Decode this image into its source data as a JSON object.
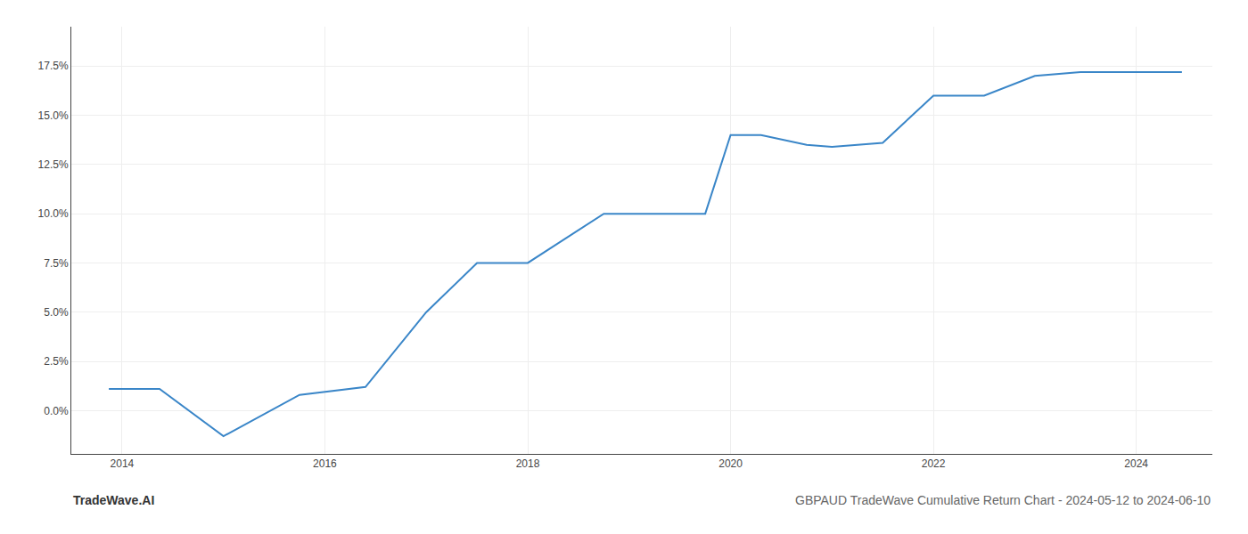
{
  "chart_data": {
    "type": "line",
    "title": "GBPAUD TradeWave Cumulative Return Chart - 2024-05-12 to 2024-06-10",
    "annotations": [
      "TradeWave.AI"
    ],
    "x": [
      2013.87,
      2014.37,
      2015.0,
      2015.75,
      2016.4,
      2017.0,
      2017.5,
      2018.0,
      2018.75,
      2019.25,
      2019.75,
      2020.0,
      2020.3,
      2020.75,
      2021.0,
      2021.5,
      2022.0,
      2022.5,
      2023.0,
      2023.45,
      2024.0,
      2024.45
    ],
    "values": [
      0.011,
      0.011,
      -0.013,
      0.008,
      0.012,
      0.05,
      0.075,
      0.075,
      0.1,
      0.1,
      0.1,
      0.14,
      0.14,
      0.135,
      0.134,
      0.136,
      0.16,
      0.16,
      0.17,
      0.172,
      0.172,
      0.172
    ],
    "color": "#3a86c8",
    "xlim": [
      2013.5,
      2024.75
    ],
    "xticks": [
      2014,
      2016,
      2018,
      2020,
      2022,
      2024
    ],
    "ylim": [
      -0.022,
      0.195
    ],
    "yticks": [
      {
        "value": 0.0,
        "label": "0.0%"
      },
      {
        "value": 0.025,
        "label": "2.5%"
      },
      {
        "value": 0.05,
        "label": "5.0%"
      },
      {
        "value": 0.075,
        "label": "7.5%"
      },
      {
        "value": 0.1,
        "label": "10.0%"
      },
      {
        "value": 0.125,
        "label": "12.5%"
      },
      {
        "value": 0.15,
        "label": "15.0%"
      },
      {
        "value": 0.175,
        "label": "17.5%"
      }
    ],
    "grid": true
  }
}
